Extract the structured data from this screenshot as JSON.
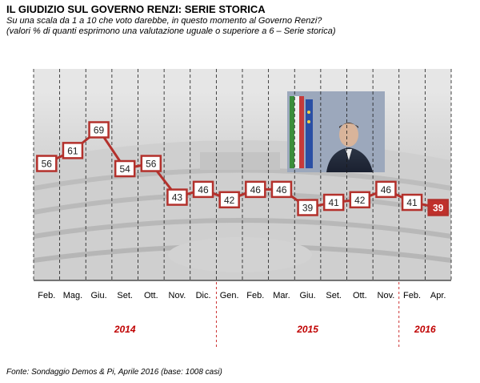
{
  "header": {
    "title": "IL GIUDIZIO  SUL GOVERNO RENZI: SERIE STORICA",
    "subtitle_line1": "Su una scala da 1 a 10 che voto darebbe, in questo momento al Governo Renzi?",
    "subtitle_line2": "(valori % di quanti esprimono una valutazione uguale o superiore a 6 – Serie storica)"
  },
  "footer": {
    "source": "Fonte: Sondaggio Demos & Pi, Aprile 2016 (base: 1008 casi)"
  },
  "colors": {
    "line": "#b3312c",
    "highlight_fill": "#c0302b",
    "label_text": "#222222",
    "year_text": "#c00000",
    "background_photo": "#d9d9d9"
  },
  "chart_data": {
    "type": "line",
    "categories": [
      "Feb.",
      "Mag.",
      "Giu.",
      "Set.",
      "Ott.",
      "Nov.",
      "Dic.",
      "Gen.",
      "Feb.",
      "Mar.",
      "Giu.",
      "Set.",
      "Ott.",
      "Nov.",
      "Feb.",
      "Apr."
    ],
    "series": [
      {
        "values": [
          56,
          61,
          69,
          54,
          56,
          43,
          46,
          42,
          46,
          46,
          39,
          41,
          42,
          46,
          41,
          39
        ]
      }
    ],
    "years": [
      {
        "label": "2014",
        "from": 0,
        "to": 6
      },
      {
        "label": "2015",
        "from": 7,
        "to": 13
      },
      {
        "label": "2016",
        "from": 14,
        "to": 15
      }
    ],
    "highlight_index": 15,
    "title": "",
    "xlabel": "",
    "ylabel": "",
    "background_image": "parliament-chamber-photo"
  }
}
